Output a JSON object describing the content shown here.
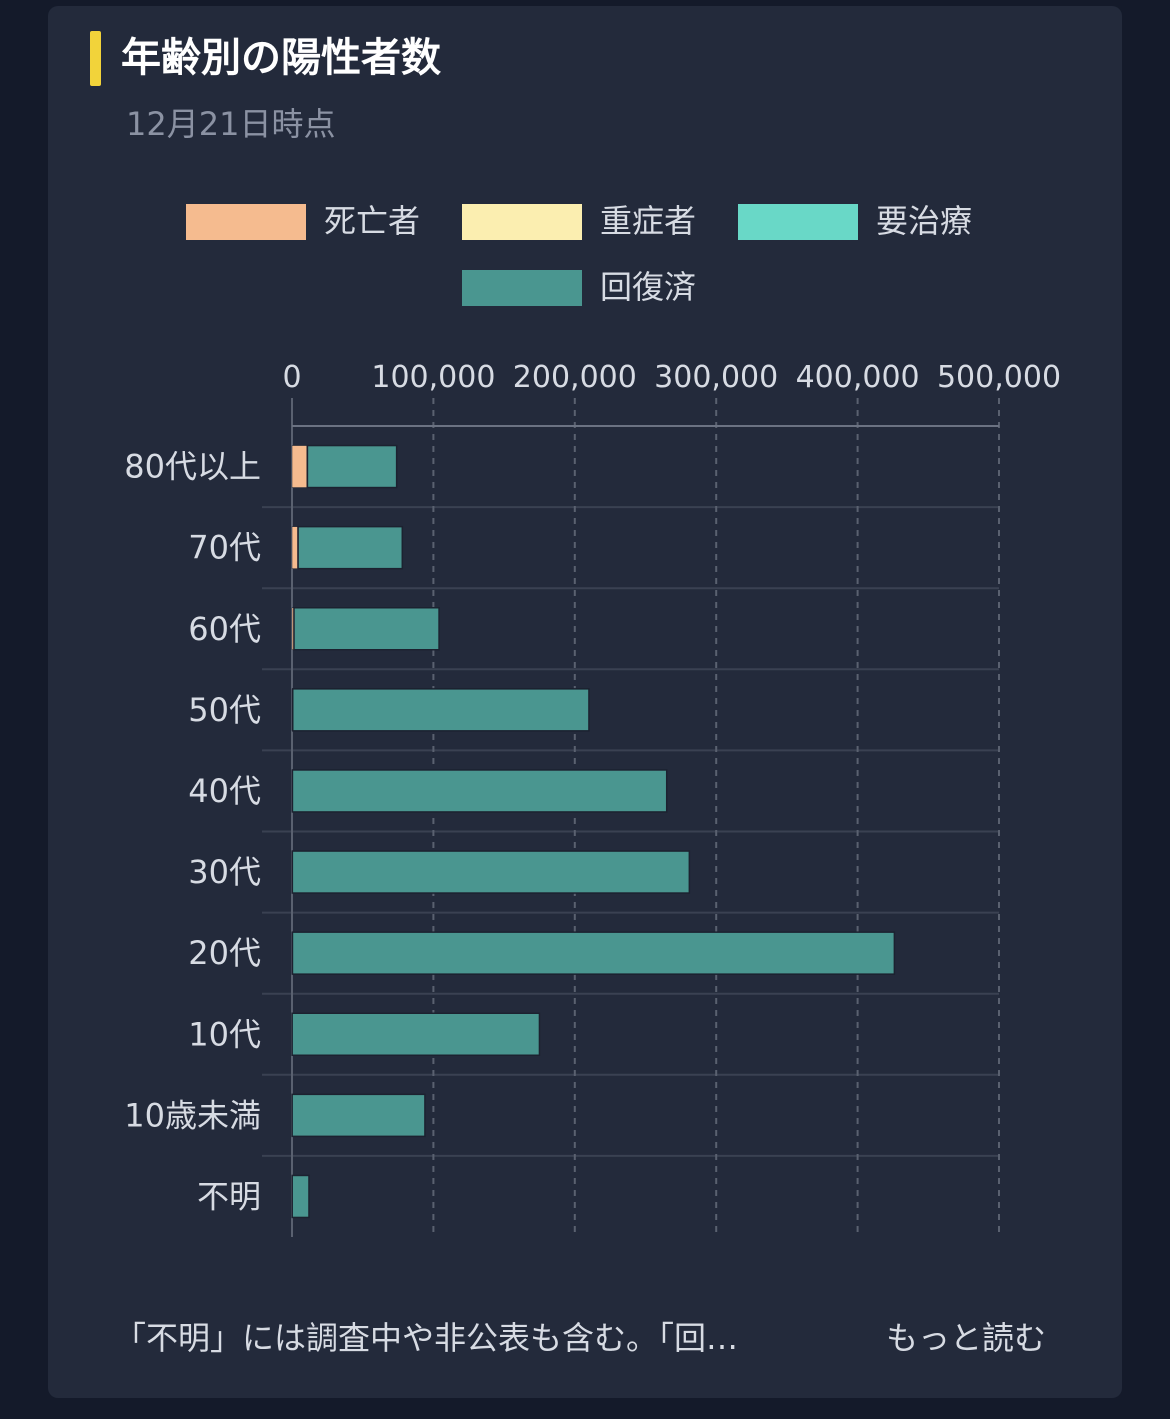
{
  "card": {
    "title": "年齢別の陽性者数",
    "subtitle": "12月21日時点",
    "footer_text": "「不明」には調査中や非公表も含む。「回…",
    "more_link": "もっと読む"
  },
  "colors": {
    "background": "#141a2a",
    "card": "#232a3b",
    "accent": "#f2d33a",
    "deaths": "#f5bb8f",
    "severe": "#fbeeb0",
    "treatment": "#69d8c7",
    "recovered": "#4a9690",
    "grid": "#5a6170"
  },
  "chart_data": {
    "type": "bar",
    "orientation": "horizontal",
    "stacked": true,
    "title": "年齢別の陽性者数",
    "subtitle": "12月21日時点",
    "xlim": [
      0,
      500000
    ],
    "xticks": [
      0,
      100000,
      200000,
      300000,
      400000,
      500000
    ],
    "xtick_labels": [
      "0",
      "100,000",
      "200,000",
      "300,000",
      "400,000",
      "500,000"
    ],
    "x_axis_position": "top",
    "grid": "vertical dashed",
    "legend_position": "top",
    "categories": [
      "80代以上",
      "70代",
      "60代",
      "50代",
      "40代",
      "30代",
      "20代",
      "10代",
      "10歳未満",
      "不明"
    ],
    "series": [
      {
        "name": "死亡者",
        "color": "#f5bb8f",
        "values": [
          10500,
          4000,
          1200,
          300,
          100,
          40,
          20,
          5,
          5,
          100
        ]
      },
      {
        "name": "重症者",
        "color": "#fbeeb0",
        "values": [
          100,
          100,
          50,
          30,
          10,
          5,
          5,
          0,
          0,
          0
        ]
      },
      {
        "name": "要治療",
        "color": "#69d8c7",
        "values": [
          300,
          200,
          150,
          200,
          200,
          200,
          300,
          100,
          100,
          50
        ]
      },
      {
        "name": "回復済",
        "color": "#4a9690",
        "values": [
          63100,
          73700,
          102600,
          209470,
          264690,
          280755,
          425675,
          174895,
          93895,
          11850
        ]
      }
    ]
  }
}
